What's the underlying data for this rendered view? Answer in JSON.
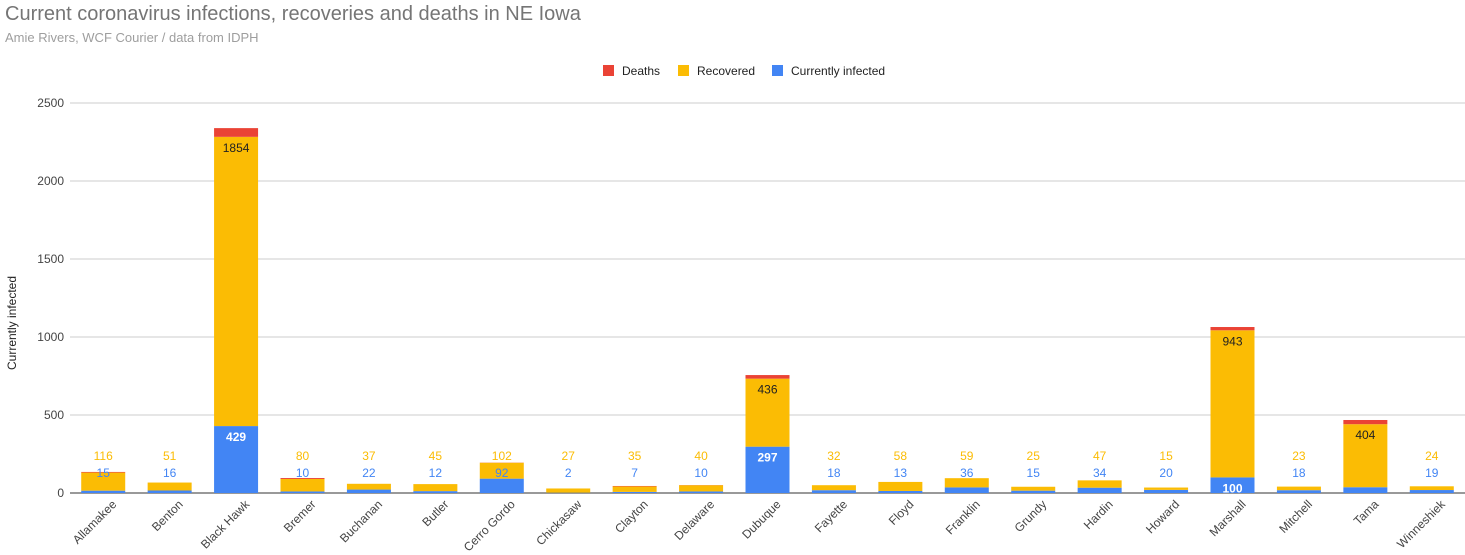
{
  "title": "Current coronavirus infections, recoveries and deaths in NE Iowa",
  "subtitle": "Amie Rivers, WCF Courier / data from IDPH",
  "colors": {
    "deaths": "#ea4335",
    "recovered": "#fbbc04",
    "infected": "#4285f4",
    "grid": "#cccccc",
    "axis": "#333333"
  },
  "chart_data": {
    "type": "bar",
    "stacked": true,
    "title": "Current coronavirus infections, recoveries and deaths in NE Iowa",
    "subtitle": "Amie Rivers, WCF Courier / data from IDPH",
    "xlabel": "",
    "ylabel": "Currently infected",
    "ylim": [
      0,
      2500
    ],
    "yticks": [
      0,
      500,
      1000,
      1500,
      2000,
      2500
    ],
    "grid": true,
    "legend": {
      "position": "top",
      "entries": [
        "Deaths",
        "Recovered",
        "Currently infected"
      ]
    },
    "categories": [
      "Allamakee",
      "Benton",
      "Black Hawk",
      "Bremer",
      "Buchanan",
      "Butler",
      "Cerro Gordo",
      "Chickasaw",
      "Clayton",
      "Delaware",
      "Dubuque",
      "Fayette",
      "Floyd",
      "Franklin",
      "Grundy",
      "Hardin",
      "Howard",
      "Marshall",
      "Mitchell",
      "Tama",
      "Winneshiek"
    ],
    "series": [
      {
        "name": "Currently infected",
        "values": [
          15,
          16,
          429,
          10,
          22,
          12,
          92,
          2,
          7,
          10,
          297,
          18,
          13,
          36,
          15,
          34,
          20,
          100,
          18,
          37,
          19
        ]
      },
      {
        "name": "Recovered",
        "values": [
          116,
          51,
          1854,
          80,
          37,
          45,
          102,
          27,
          35,
          40,
          436,
          32,
          58,
          59,
          25,
          47,
          15,
          943,
          23,
          404,
          24
        ]
      },
      {
        "name": "Deaths",
        "values": [
          4,
          0,
          56,
          6,
          0,
          0,
          1,
          0,
          3,
          1,
          23,
          0,
          0,
          0,
          0,
          0,
          0,
          21,
          0,
          27,
          0
        ]
      }
    ]
  }
}
